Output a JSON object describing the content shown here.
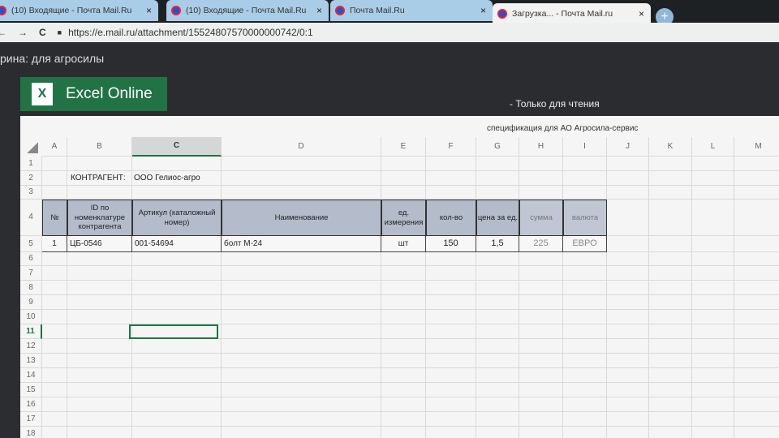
{
  "browser": {
    "tabs": [
      {
        "title": "(10) Входящие - Почта Mail.Ru"
      },
      {
        "title": "(10) Входящие - Почта Mail.Ru"
      },
      {
        "title": "Почта Mail.Ru"
      },
      {
        "title": "Загрузка... - Почта Mail.ru"
      }
    ],
    "new_tab": "+",
    "close": "×",
    "url": "https://e.mail.ru/attachment/15524807570000000742/0:1",
    "back": "←",
    "forward": "→",
    "reload": "C"
  },
  "document_title": "рина: для агросилы",
  "app": {
    "name": "Excel Online",
    "logo": "X",
    "mode": "-   Только для чтения"
  },
  "sheet": {
    "caption": "спецификация для АО Агросила-сервис",
    "columns": [
      "A",
      "B",
      "C",
      "D",
      "E",
      "F",
      "G",
      "H",
      "I",
      "J",
      "K",
      "L",
      "M"
    ],
    "rows": [
      "1",
      "2",
      "3",
      "4",
      "5",
      "6",
      "7",
      "8",
      "9",
      "10",
      "11",
      "12",
      "13",
      "14",
      "15",
      "16",
      "17",
      "18"
    ],
    "selected_cell": "C11",
    "counterparty_label": "КОНТРАГЕНТ:",
    "counterparty_value": "ООО Гелиос-агро",
    "table_headers": [
      "№",
      "ID по номенклатуре контрагента",
      "Артикул (каталожный номер)",
      "Наименование",
      "ед. измерения",
      "кол-во",
      "цена за ед.",
      "сумма",
      "валюта"
    ],
    "table_rows": [
      [
        "1",
        "ЦБ-0546",
        "001-54694",
        "болт М-24",
        "шт",
        "150",
        "1,5",
        "225",
        "ЕВРО"
      ]
    ]
  }
}
